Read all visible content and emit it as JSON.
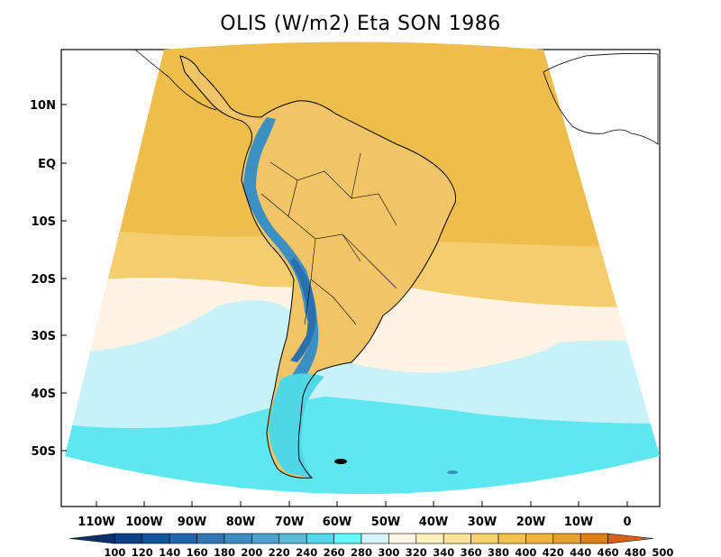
{
  "title": "OLIS (W/m2) Eta SON 1986",
  "lat_labels": [
    "10N",
    "EQ",
    "10S",
    "20S",
    "30S",
    "40S",
    "50S"
  ],
  "lon_labels": [
    "110W",
    "100W",
    "90W",
    "80W",
    "70W",
    "60W",
    "50W",
    "40W",
    "30W",
    "20W",
    "10W",
    "0"
  ],
  "colorbar": {
    "levels": [
      "100",
      "120",
      "140",
      "160",
      "180",
      "200",
      "220",
      "240",
      "260",
      "280",
      "300",
      "320",
      "340",
      "360",
      "380",
      "400",
      "420",
      "440",
      "460",
      "480",
      "500"
    ],
    "colors": [
      "#08306b",
      "#0d3f86",
      "#1552a0",
      "#2466ae",
      "#3179b6",
      "#3e8dc1",
      "#4ba2cb",
      "#5bbbd6",
      "#4fd9e8",
      "#62ffff",
      "#d6f5fb",
      "#fff5e6",
      "#fff0c0",
      "#fbe59a",
      "#f7d36e",
      "#f2c24f",
      "#eeb43c",
      "#e9a12a",
      "#de7f1a",
      "#d6621a"
    ]
  },
  "map_colors": {
    "ocean_high_lat": "#5ee7f1",
    "ocean_south_mid": "#c8f2fa",
    "ocean_south_light": "#fff4e4",
    "ocean_subtropics": "#f4cd6e",
    "ocean_tropics": "#efbd4c",
    "land_interior": "#f1c567",
    "andes": "#3b8fc3",
    "andes_high": "#2a6fae",
    "patagonia": "#4fd7e6",
    "coastline": "#000000"
  }
}
